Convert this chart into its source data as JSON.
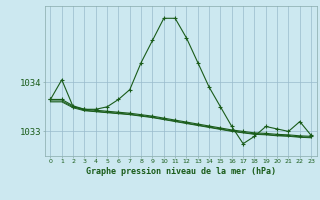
{
  "title": "Graphe pression niveau de la mer (hPa)",
  "background_color": "#cce8f0",
  "plot_bg_color": "#cce8f0",
  "line_color": "#1a5c1a",
  "grid_color": "#99bbcc",
  "xlim": [
    -0.5,
    23.5
  ],
  "ylim": [
    1032.5,
    1035.55
  ],
  "yticks": [
    1033,
    1034
  ],
  "xticks": [
    0,
    1,
    2,
    3,
    4,
    5,
    6,
    7,
    8,
    9,
    10,
    11,
    12,
    13,
    14,
    15,
    16,
    17,
    18,
    19,
    20,
    21,
    22,
    23
  ],
  "series1": {
    "x": [
      0,
      1,
      2,
      3,
      4,
      5,
      6,
      7,
      8,
      9,
      10,
      11,
      12,
      13,
      14,
      15,
      16,
      17,
      18,
      19,
      20,
      21,
      22,
      23
    ],
    "y": [
      1033.65,
      1034.05,
      1033.5,
      1033.45,
      1033.45,
      1033.5,
      1033.65,
      1033.85,
      1034.4,
      1034.85,
      1035.3,
      1035.3,
      1034.9,
      1034.4,
      1033.9,
      1033.5,
      1033.1,
      1032.75,
      1032.9,
      1033.1,
      1033.05,
      1033.0,
      1033.2,
      1032.92
    ]
  },
  "series2": {
    "x": [
      0,
      1,
      2,
      3,
      4,
      5,
      6,
      7,
      8,
      9,
      10,
      11,
      12,
      13,
      14,
      15,
      16,
      17,
      18,
      19,
      20,
      21,
      22,
      23
    ],
    "y": [
      1033.65,
      1033.65,
      1033.52,
      1033.45,
      1033.43,
      1033.41,
      1033.39,
      1033.37,
      1033.34,
      1033.31,
      1033.27,
      1033.23,
      1033.19,
      1033.15,
      1033.11,
      1033.07,
      1033.03,
      1033.0,
      1032.97,
      1032.96,
      1032.94,
      1032.93,
      1032.91,
      1032.9
    ]
  },
  "series3": {
    "x": [
      0,
      1,
      2,
      3,
      4,
      5,
      6,
      7,
      8,
      9,
      10,
      11,
      12,
      13,
      14,
      15,
      16,
      17,
      18,
      19,
      20,
      21,
      22,
      23
    ],
    "y": [
      1033.62,
      1033.62,
      1033.5,
      1033.43,
      1033.41,
      1033.39,
      1033.37,
      1033.35,
      1033.32,
      1033.29,
      1033.25,
      1033.21,
      1033.17,
      1033.13,
      1033.09,
      1033.05,
      1033.01,
      1032.98,
      1032.95,
      1032.94,
      1032.92,
      1032.91,
      1032.89,
      1032.88
    ]
  },
  "series4": {
    "x": [
      0,
      1,
      2,
      3,
      4,
      5,
      6,
      7,
      8,
      9,
      10,
      11,
      12,
      13,
      14,
      15,
      16,
      17,
      18,
      19,
      20,
      21,
      22,
      23
    ],
    "y": [
      1033.6,
      1033.6,
      1033.48,
      1033.42,
      1033.4,
      1033.38,
      1033.36,
      1033.34,
      1033.31,
      1033.28,
      1033.24,
      1033.2,
      1033.16,
      1033.12,
      1033.08,
      1033.04,
      1033.0,
      1032.97,
      1032.94,
      1032.93,
      1032.91,
      1032.9,
      1032.88,
      1032.87
    ]
  }
}
